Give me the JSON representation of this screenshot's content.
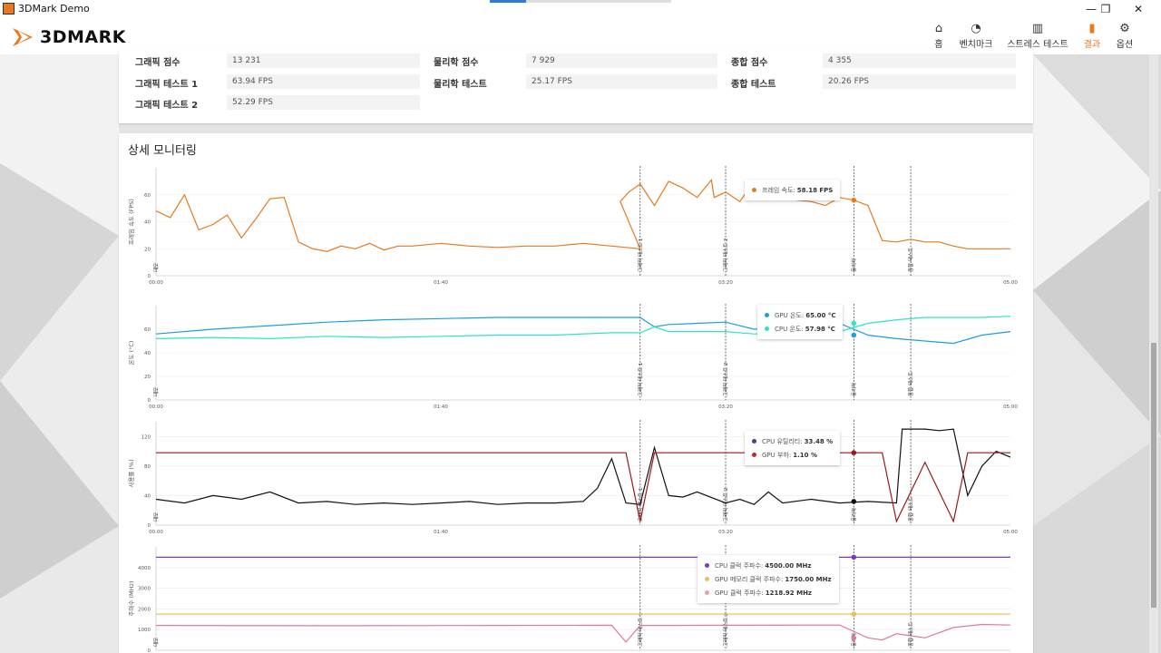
{
  "window": {
    "title": "3DMark Demo",
    "controls": [
      "—",
      "❐",
      "✕"
    ]
  },
  "app": {
    "logo_text": "3DMARK",
    "nav": [
      {
        "label": "홈",
        "icon": "⌂",
        "icon_name": "home-icon"
      },
      {
        "label": "벤치마크",
        "icon": "◔",
        "icon_name": "gauge-icon"
      },
      {
        "label": "스트레스 테스트",
        "icon": "▥",
        "icon_name": "bar-chart-icon"
      },
      {
        "label": "결과",
        "icon": "▮",
        "icon_name": "results-icon",
        "active": true
      },
      {
        "label": "옵션",
        "icon": "⚙",
        "icon_name": "gear-icon"
      }
    ],
    "accent": "#e8791d"
  },
  "scores": {
    "graphics_label": "그래픽 점수",
    "graphics_value": "13 231",
    "gt1_label": "그래픽 테스트 1",
    "gt1_value": "63.94 FPS",
    "gt2_label": "그래픽 테스트 2",
    "gt2_value": "52.29 FPS",
    "physics_label": "물리학 점수",
    "physics_value": "7 929",
    "phys_test_label": "물리학 테스트",
    "phys_test_value": "25.17 FPS",
    "combined_label": "종합 점수",
    "combined_value": "4 355",
    "comb_test_label": "종합 테스트",
    "comb_test_value": "20.26 FPS"
  },
  "monitoring": {
    "title": "상세 모니터링",
    "time_ticks": [
      "00:00",
      "01:40",
      "03:20",
      "05:00"
    ],
    "markers": [
      "데모",
      "그래픽 테스트 1",
      "그래픽 테스트 2",
      "물리학",
      "종합 테스트"
    ],
    "legends": {
      "fps": [
        {
          "label": "프레임 속도:",
          "value": "58.18 FPS",
          "color": "#e8791d"
        }
      ],
      "temp": [
        {
          "label": "GPU 온도:",
          "value": "65.00 °C",
          "color": "#1e9ddc"
        },
        {
          "label": "CPU 온도:",
          "value": "57.98 °C",
          "color": "#2ee6c0"
        }
      ],
      "util": [
        {
          "label": "CPU 유틸리티:",
          "value": "33.48 %",
          "color": "#4b3b8f"
        },
        {
          "label": "GPU 부하:",
          "value": "1.10 %",
          "color": "#c0282a"
        }
      ],
      "clock": [
        {
          "label": "CPU 클럭 주파수:",
          "value": "4500.00 MHz",
          "color": "#7b3bbf"
        },
        {
          "label": "GPU 메모리 클럭 주파수:",
          "value": "1750.00 MHz",
          "color": "#e8c060"
        },
        {
          "label": "GPU 클럭 주파수:",
          "value": "1218.92 MHz",
          "color": "#e8a0a0"
        }
      ]
    }
  },
  "chart_data": [
    {
      "type": "line",
      "ylabel": "프레임 속도 (FPS)",
      "yticks": [
        "0",
        "20",
        "40",
        "60"
      ],
      "ylim": [
        0,
        80
      ],
      "xlim": [
        0,
        300
      ],
      "series": [
        {
          "name": "프레임 속도",
          "color": "#e8791d",
          "x": [
            0,
            5,
            10,
            15,
            20,
            25,
            30,
            35,
            40,
            45,
            50,
            55,
            60,
            65,
            70,
            75,
            80,
            85,
            90,
            95,
            100,
            110,
            120,
            130,
            140,
            150,
            160,
            170,
            163,
            166,
            170,
            175,
            180,
            185,
            190,
            195,
            196,
            200,
            205,
            210,
            215,
            220,
            225,
            230,
            235,
            240,
            245,
            250,
            255,
            260,
            265,
            270,
            275,
            280,
            285,
            290,
            295,
            300
          ],
          "y": [
            48,
            43,
            60,
            34,
            38,
            45,
            28,
            42,
            57,
            58,
            25,
            20,
            18,
            22,
            20,
            24,
            19,
            22,
            22,
            23,
            24,
            22,
            21,
            22,
            22,
            24,
            22,
            20,
            55,
            62,
            68,
            52,
            70,
            65,
            58,
            71,
            58,
            62,
            55,
            70,
            68,
            58,
            56,
            55,
            52,
            58,
            56,
            52,
            26,
            25,
            27,
            25,
            25,
            22,
            20,
            20,
            20,
            20
          ],
          "note": "approximate frame rate per time (s)"
        }
      ]
    },
    {
      "type": "line",
      "ylabel": "온도 (°C)",
      "yticks": [
        "0",
        "20",
        "40",
        "60"
      ],
      "ylim": [
        0,
        80
      ],
      "xlim": [
        0,
        300
      ],
      "series": [
        {
          "name": "GPU 온도",
          "color": "#1e9ddc",
          "x": [
            0,
            20,
            40,
            60,
            80,
            100,
            120,
            140,
            160,
            170,
            175,
            180,
            200,
            210,
            230,
            240,
            250,
            260,
            270,
            280,
            290,
            300
          ],
          "y": [
            56,
            60,
            63,
            66,
            68,
            69,
            70,
            70,
            70,
            70,
            62,
            64,
            66,
            60,
            64,
            65,
            55,
            52,
            50,
            48,
            55,
            58
          ]
        },
        {
          "name": "CPU 온도",
          "color": "#2ee6c0",
          "x": [
            0,
            20,
            40,
            60,
            80,
            100,
            120,
            140,
            160,
            170,
            175,
            180,
            200,
            210,
            230,
            240,
            250,
            260,
            270,
            280,
            290,
            300
          ],
          "y": [
            52,
            53,
            52,
            54,
            53,
            54,
            55,
            55,
            57,
            57,
            62,
            58,
            58,
            56,
            57,
            58,
            65,
            68,
            70,
            70,
            70,
            71
          ]
        }
      ]
    },
    {
      "type": "line",
      "ylabel": "사용률 (%)",
      "yticks": [
        "0",
        "40",
        "80",
        "120"
      ],
      "ylim": [
        0,
        140
      ],
      "xlim": [
        0,
        300
      ],
      "series": [
        {
          "name": "CPU 유틸리티",
          "color": "#111111",
          "x": [
            0,
            10,
            20,
            30,
            40,
            50,
            60,
            70,
            80,
            90,
            100,
            110,
            120,
            130,
            140,
            150,
            155,
            160,
            165,
            170,
            175,
            180,
            185,
            190,
            200,
            205,
            210,
            215,
            220,
            230,
            240,
            250,
            260,
            262,
            270,
            275,
            280,
            285,
            290,
            295,
            300
          ],
          "y": [
            35,
            30,
            40,
            35,
            45,
            30,
            32,
            28,
            30,
            28,
            30,
            32,
            28,
            30,
            30,
            32,
            50,
            90,
            30,
            28,
            105,
            40,
            38,
            45,
            30,
            35,
            28,
            45,
            30,
            35,
            30,
            32,
            30,
            130,
            130,
            128,
            130,
            40,
            80,
            100,
            92
          ]
        },
        {
          "name": "GPU 부하",
          "color": "#9a1a1a",
          "x": [
            0,
            10,
            20,
            40,
            60,
            80,
            100,
            120,
            140,
            160,
            165,
            170,
            175,
            180,
            200,
            210,
            230,
            240,
            250,
            255,
            260,
            270,
            280,
            285,
            290,
            300
          ],
          "y": [
            98,
            98,
            98,
            98,
            98,
            98,
            98,
            98,
            98,
            98,
            98,
            5,
            98,
            98,
            98,
            98,
            98,
            98,
            98,
            98,
            5,
            85,
            5,
            98,
            98,
            98
          ]
        }
      ]
    },
    {
      "type": "line",
      "ylabel": "주파수 (MHz)",
      "yticks": [
        "0",
        "1000",
        "2000",
        "3000",
        "4000"
      ],
      "ylim": [
        0,
        5000
      ],
      "xlim": [
        0,
        300
      ],
      "series": [
        {
          "name": "CPU 클럭 주파수",
          "color": "#7b3bbf",
          "x": [
            0,
            300
          ],
          "y": [
            4500,
            4500
          ]
        },
        {
          "name": "GPU 메모리 클럭 주파수",
          "color": "#e8c060",
          "x": [
            0,
            300
          ],
          "y": [
            1750,
            1750
          ]
        },
        {
          "name": "GPU 클럭 주파수",
          "color": "#e07a9a",
          "x": [
            0,
            60,
            120,
            160,
            165,
            170,
            180,
            200,
            240,
            250,
            255,
            260,
            270,
            280,
            290,
            300
          ],
          "y": [
            1200,
            1190,
            1200,
            1210,
            400,
            1200,
            1200,
            1210,
            1220,
            600,
            500,
            800,
            600,
            1100,
            1250,
            1220
          ]
        }
      ]
    }
  ]
}
